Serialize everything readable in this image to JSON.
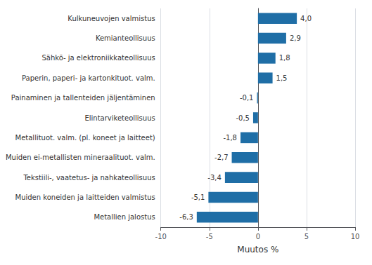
{
  "chart_data": {
    "type": "bar",
    "orientation": "horizontal",
    "categories": [
      "Metallien jalostus",
      "Muiden koneiden ja laitteiden valmistus",
      "Tekstiili-, vaatetus- ja nahkateollisuus",
      "Muiden ei-metallisten mineraalituot. valm.",
      "Metallituot. valm. (pl. koneet ja laitteet)",
      "Elintarviketeollisuus",
      "Painaminen ja tallenteiden jäljentäminen",
      "Paperin, paperi- ja kartonkituot. valm.",
      "Sähkö- ja elektroniikkateollisuus",
      "Kemianteollisuus",
      "Kulkuneuvojen valmistus"
    ],
    "values": [
      -6.3,
      -5.1,
      -3.4,
      -2.7,
      -1.8,
      -0.5,
      -0.1,
      1.5,
      1.8,
      2.9,
      4.0
    ],
    "value_labels": [
      "-6,3",
      "-5,1",
      "-3,4",
      "-2,7",
      "-1,8",
      "-0,5",
      "-0,1",
      "1,5",
      "1,8",
      "2,9",
      "4,0"
    ],
    "data_labels": true,
    "color": "#1f6ea6",
    "xlabel": "Muutos %",
    "xlim": [
      -10,
      10
    ],
    "xticks": [
      -10,
      -5,
      0,
      5,
      10
    ],
    "grid": true
  }
}
